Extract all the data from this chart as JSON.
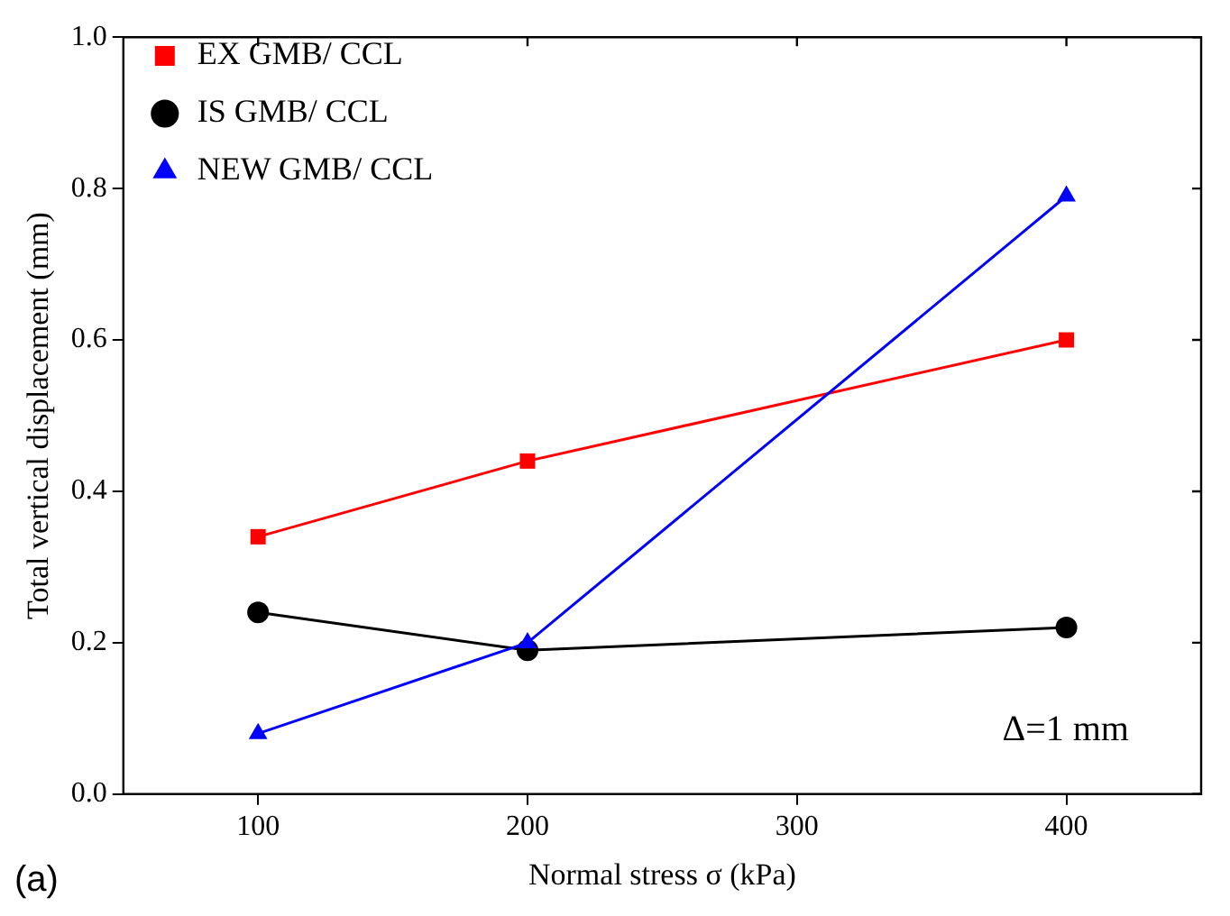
{
  "chart_data": {
    "type": "line",
    "xlabel": "Normal stress σ (kPa)",
    "ylabel": "Total vertical displacement (mm)",
    "x": [
      100,
      200,
      400
    ],
    "series": [
      {
        "name": "EX GMB/ CCL",
        "color": "#ff0000",
        "marker": "square",
        "values": [
          0.34,
          0.44,
          0.6
        ]
      },
      {
        "name": "IS GMB/ CCL",
        "color": "#000000",
        "marker": "circle",
        "values": [
          0.24,
          0.19,
          0.22
        ]
      },
      {
        "name": "NEW GMB/ CCL",
        "color": "#0000ff",
        "marker": "triangle",
        "values": [
          0.08,
          0.2,
          0.79
        ]
      }
    ],
    "xlim": [
      50,
      450
    ],
    "xticks": [
      100,
      200,
      300,
      400
    ],
    "ylim": [
      0,
      1.0
    ],
    "yticks": [
      {
        "value": 0,
        "label": "0.0"
      },
      {
        "value": 0.2,
        "label": "0.2"
      },
      {
        "value": 0.4,
        "label": "0.4"
      },
      {
        "value": 0.6,
        "label": "0.6"
      },
      {
        "value": 0.8,
        "label": "0.8"
      },
      {
        "value": 1.0,
        "label": "1.0"
      }
    ],
    "grid": false,
    "legend": "top left",
    "line_style": "solid",
    "annotations": [
      "Δ=1 mm",
      "(a)"
    ]
  }
}
